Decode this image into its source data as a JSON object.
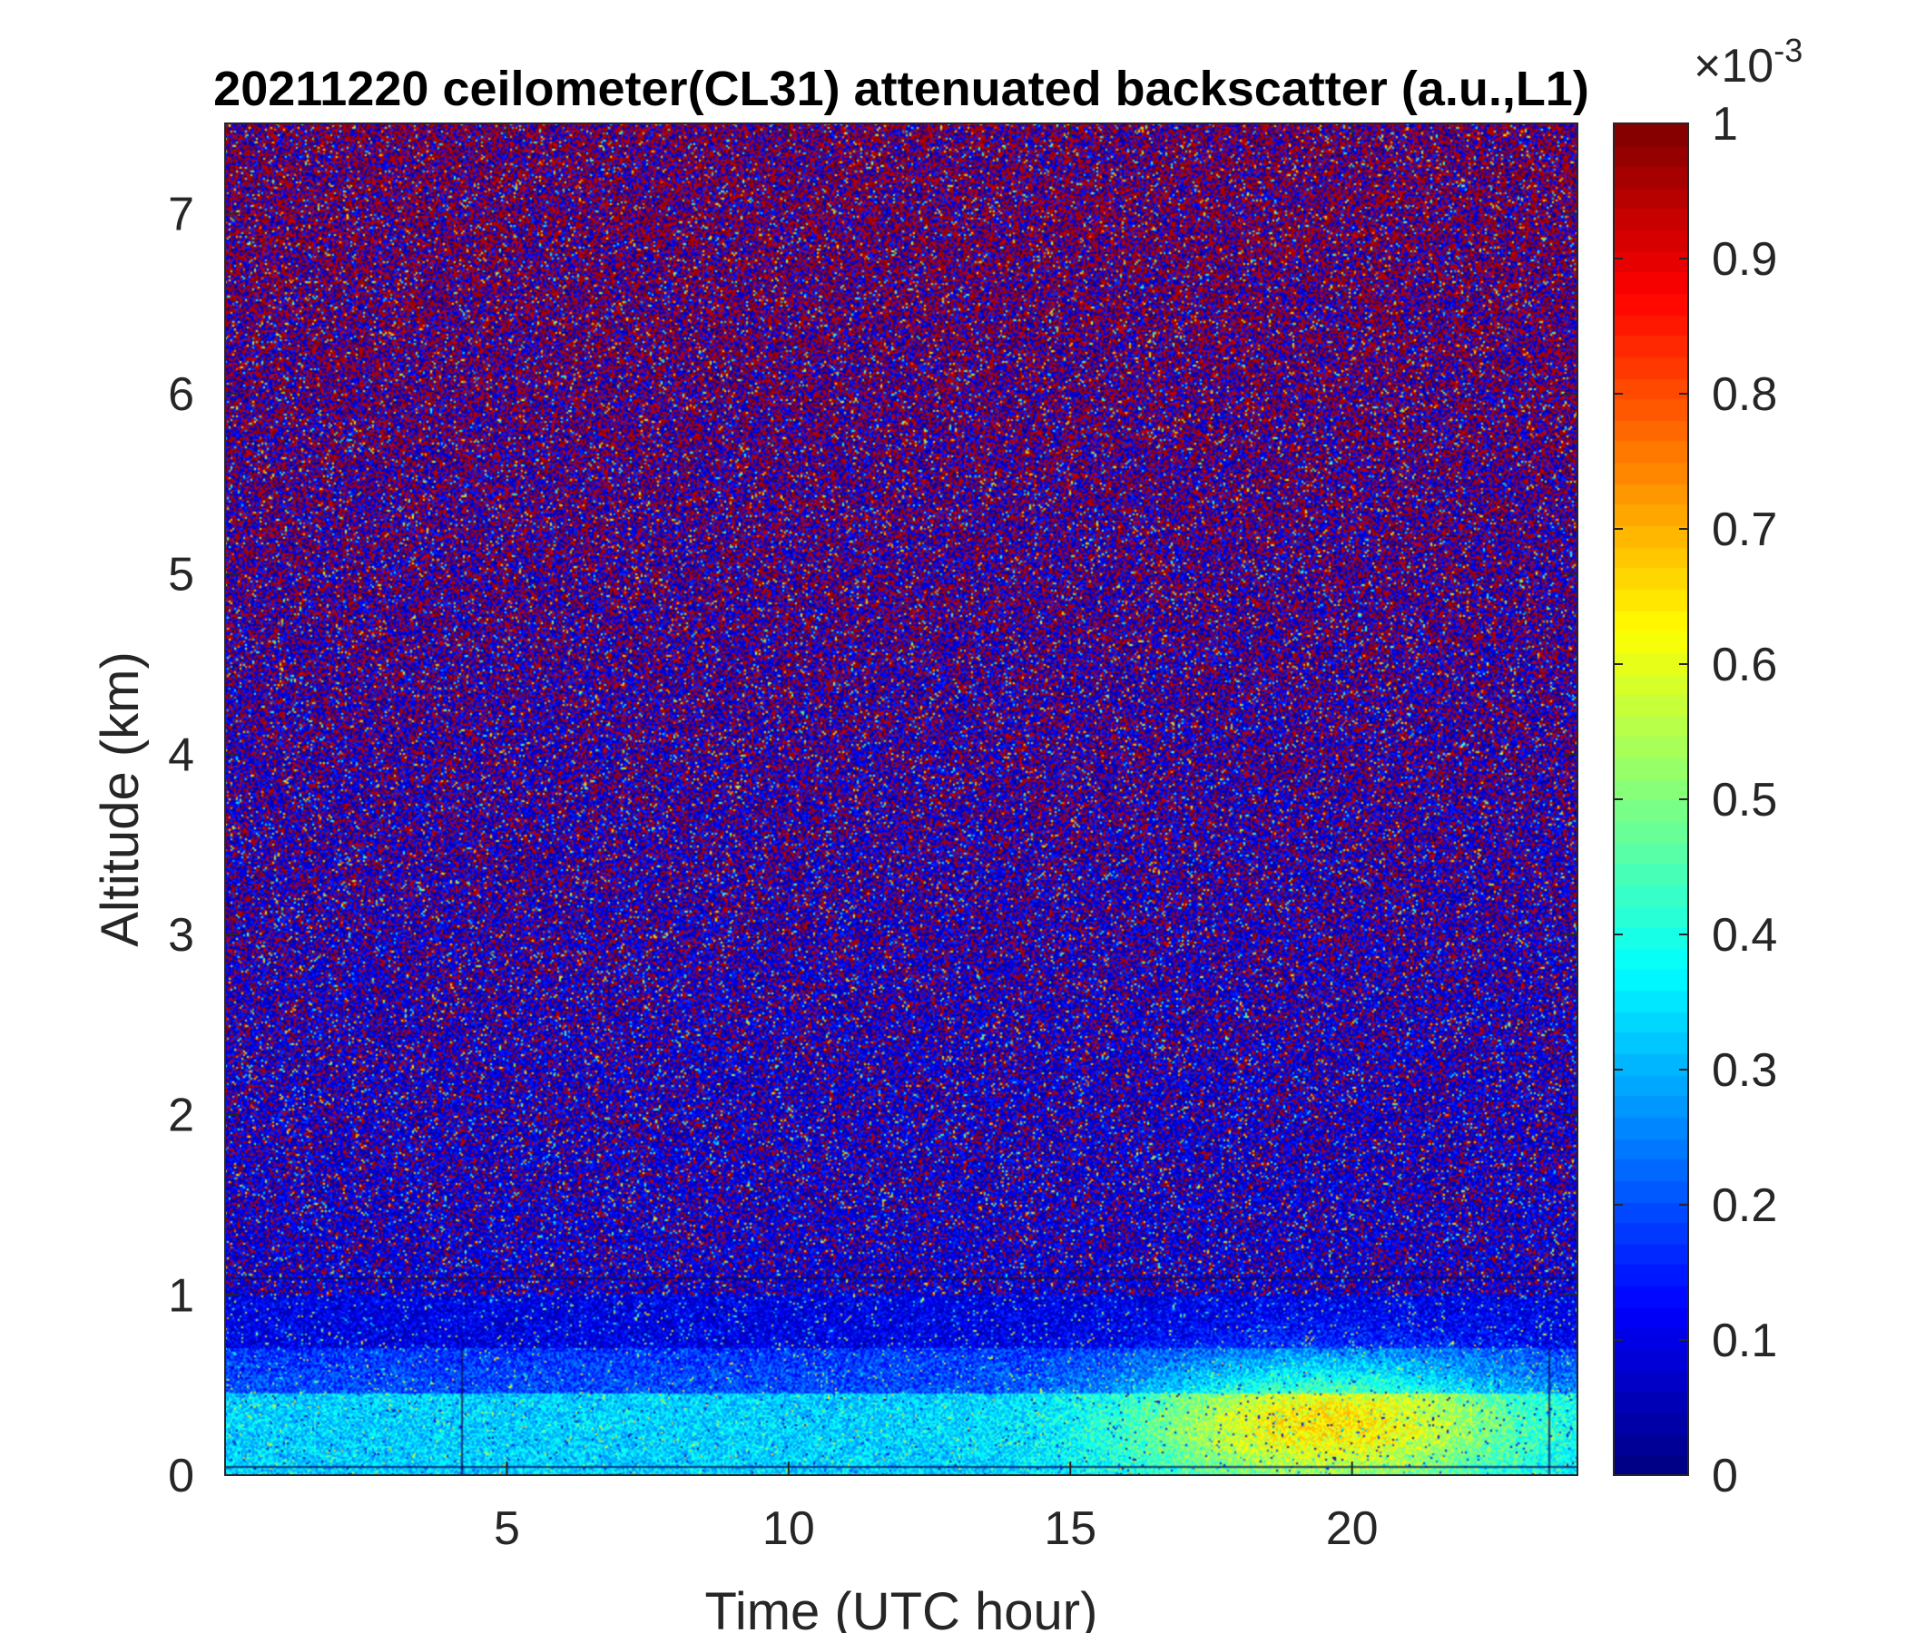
{
  "chart_data": {
    "type": "heatmap",
    "title": "20211220 ceilometer(CL31) attenuated backscatter (a.u.,L1)",
    "xlabel": "Time (UTC hour)",
    "ylabel": "Altitude (km)",
    "xlim": [
      0,
      24
    ],
    "ylim": [
      0,
      7.5
    ],
    "xticks": [
      5,
      10,
      15,
      20
    ],
    "xtick_labels": [
      "5",
      "10",
      "15",
      "20"
    ],
    "yticks": [
      0,
      1,
      2,
      3,
      4,
      5,
      6,
      7
    ],
    "ytick_labels": [
      "0",
      "1",
      "2",
      "3",
      "4",
      "5",
      "6",
      "7"
    ],
    "colorbar": {
      "colormap": "jet",
      "clim": [
        0,
        1
      ],
      "ticks": [
        0,
        0.1,
        0.2,
        0.3,
        0.4,
        0.5,
        0.6,
        0.7,
        0.8,
        0.9,
        1
      ],
      "tick_labels": [
        "0",
        "0.1",
        "0.2",
        "0.3",
        "0.4",
        "0.5",
        "0.6",
        "0.7",
        "0.8",
        "0.9",
        "1"
      ],
      "exponent_base": "×10",
      "exponent_power": "-3"
    },
    "features": {
      "noise_above_km": 1.0,
      "boundary_layer_top_km": 0.7,
      "enhanced_aerosol_time_range": [
        15,
        22
      ],
      "enhanced_aerosol_max_value": 0.6,
      "horizontal_lines_km": [
        0.05,
        1.1
      ],
      "vertical_lines_hour": [
        4.2,
        23.5
      ]
    }
  }
}
